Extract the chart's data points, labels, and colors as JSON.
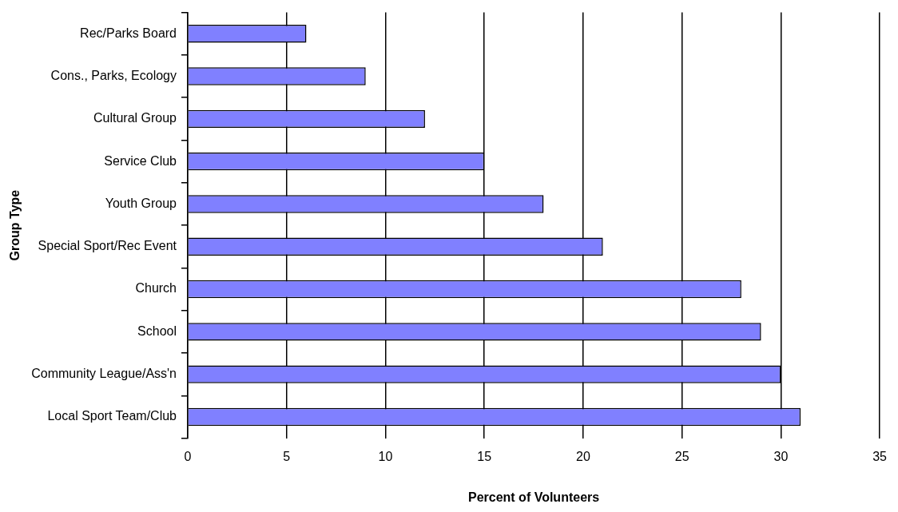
{
  "chart_data": {
    "type": "bar",
    "orientation": "horizontal",
    "categories": [
      "Rec/Parks Board",
      "Cons., Parks, Ecology",
      "Cultural Group",
      "Service Club",
      "Youth Group",
      "Special Sport/Rec Event",
      "Church",
      "School",
      "Community League/Ass'n",
      "Local Sport Team/Club"
    ],
    "values": [
      6,
      9,
      12,
      15,
      18,
      21,
      28,
      29,
      30,
      31
    ],
    "color": "#8080ff",
    "xlabel": "Percent of Volunteers",
    "ylabel": "Group Type",
    "xlim": [
      0,
      35
    ],
    "xticks": [
      0,
      5,
      10,
      15,
      20,
      25,
      30,
      35
    ],
    "grid": "x",
    "legend": false
  }
}
